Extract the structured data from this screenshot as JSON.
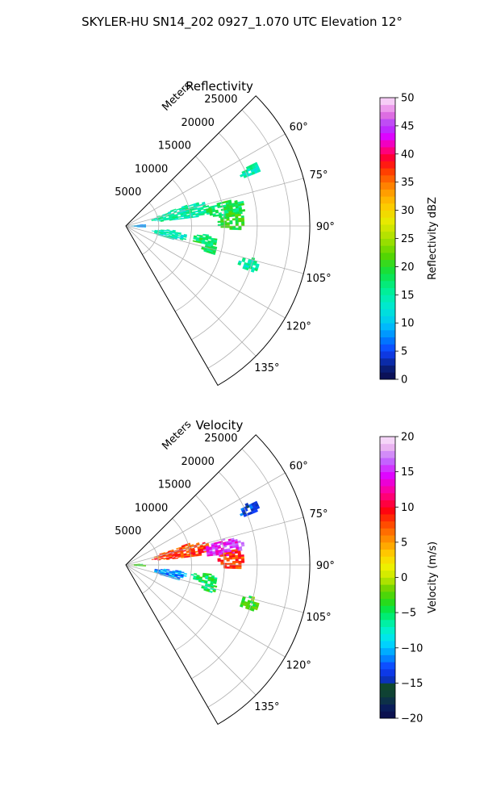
{
  "figure": {
    "suptitle": "SKYLER-HU  SN14_202  0927_1.070 UTC Elevation 12°"
  },
  "chart_data": [
    {
      "type": "heatmap",
      "subtype": "polar-sector (PPI radar scan)",
      "title": "Reflectivity",
      "radial_label": "Meters",
      "theta_range_deg": [
        45,
        150
      ],
      "theta_ticks_deg": [
        "60°",
        "75°",
        "90°",
        "105°",
        "120°",
        "135°"
      ],
      "r_range": [
        0,
        28000
      ],
      "r_ticks": [
        "5000",
        "10000",
        "15000",
        "20000",
        "25000"
      ],
      "r_tick_values": [
        5000,
        10000,
        15000,
        20000,
        25000
      ],
      "grid": true,
      "colorbar": {
        "label": "Reflectivity dBZ",
        "range": [
          0,
          50
        ],
        "ticks": [
          "0",
          "5",
          "10",
          "15",
          "20",
          "25",
          "30",
          "35",
          "40",
          "45",
          "50"
        ],
        "tick_values": [
          0,
          5,
          10,
          15,
          20,
          25,
          30,
          35,
          40,
          45,
          50
        ],
        "colormap": "pyart_HomeyerRainbow-like"
      },
      "echo_regions": [
        {
          "theta": [
            71,
            83
          ],
          "r": [
            4000,
            13000
          ],
          "value": 15
        },
        {
          "theta": [
            75,
            85
          ],
          "r": [
            12000,
            18000
          ],
          "value": 18
        },
        {
          "theta": [
            82,
            92
          ],
          "r": [
            14000,
            18000
          ],
          "value": 20
        },
        {
          "theta": [
            95,
            106
          ],
          "r": [
            4000,
            9000
          ],
          "value": 14
        },
        {
          "theta": [
            96,
            103
          ],
          "r": [
            10000,
            14000
          ],
          "value": 18
        },
        {
          "theta": [
            102,
            108
          ],
          "r": [
            12000,
            14000
          ],
          "value": 18
        },
        {
          "theta": [
            63,
            68
          ],
          "r": [
            19000,
            22000
          ],
          "value": 15
        },
        {
          "theta": [
            104,
            110
          ],
          "r": [
            18000,
            21000
          ],
          "value": 15
        },
        {
          "theta": [
            85,
            95
          ],
          "r": [
            800,
            3000
          ],
          "value": 8
        }
      ]
    },
    {
      "type": "heatmap",
      "subtype": "polar-sector (PPI radar scan)",
      "title": "Velocity",
      "radial_label": "Meters",
      "theta_range_deg": [
        45,
        150
      ],
      "theta_ticks_deg": [
        "60°",
        "75°",
        "90°",
        "105°",
        "120°",
        "135°"
      ],
      "r_range": [
        0,
        28000
      ],
      "r_ticks": [
        "5000",
        "10000",
        "15000",
        "20000",
        "25000"
      ],
      "r_tick_values": [
        5000,
        10000,
        15000,
        20000,
        25000
      ],
      "grid": true,
      "colorbar": {
        "label": "Velocity (m/s)",
        "range": [
          -20,
          20
        ],
        "ticks": [
          "−20",
          "−15",
          "−10",
          "−5",
          "0",
          "5",
          "10",
          "15",
          "20"
        ],
        "tick_values": [
          -20,
          -15,
          -10,
          -5,
          0,
          5,
          10,
          15,
          20
        ],
        "colormap": "pyart_BuDRd-like"
      },
      "echo_regions": [
        {
          "theta": [
            71,
            83
          ],
          "r": [
            4000,
            13000
          ],
          "value": 8
        },
        {
          "theta": [
            75,
            85
          ],
          "r": [
            12000,
            18000
          ],
          "value": 15
        },
        {
          "theta": [
            82,
            92
          ],
          "r": [
            14000,
            18000
          ],
          "value": 8
        },
        {
          "theta": [
            95,
            106
          ],
          "r": [
            4000,
            9000
          ],
          "value": -11
        },
        {
          "theta": [
            96,
            103
          ],
          "r": [
            10000,
            14000
          ],
          "value": -5
        },
        {
          "theta": [
            102,
            108
          ],
          "r": [
            12000,
            14000
          ],
          "value": -5
        },
        {
          "theta": [
            63,
            68
          ],
          "r": [
            19000,
            22000
          ],
          "value": -13
        },
        {
          "theta": [
            104,
            110
          ],
          "r": [
            18000,
            21000
          ],
          "value": -3
        },
        {
          "theta": [
            85,
            95
          ],
          "r": [
            800,
            3000
          ],
          "value": -3
        }
      ]
    }
  ]
}
